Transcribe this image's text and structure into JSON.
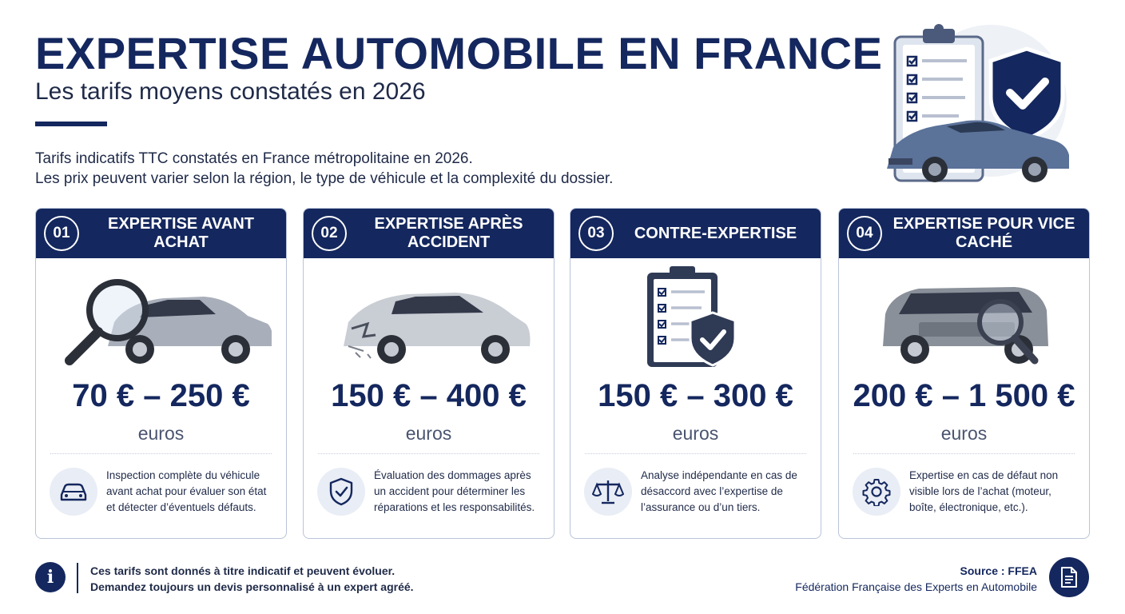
{
  "header": {
    "title": "EXPERTISE AUTOMOBILE EN FRANCE",
    "subtitle": "Les tarifs moyens constatés en 2026",
    "intro_line1": "Tarifs indicatifs TTC constatés en France métropolitaine en 2026.",
    "intro_line2": "Les prix peuvent varier selon la région, le type de véhicule et la complexité du dossier."
  },
  "colors": {
    "primary": "#14275e",
    "border": "#b9c3d9",
    "icon_bg": "#e9edf5"
  },
  "cards": [
    {
      "number": "01",
      "title": "EXPERTISE AVANT ACHAT",
      "illustration": "car-magnifier-illustration",
      "price": "70 € – 250 €",
      "unit": "euros",
      "icon": "car-icon",
      "description": "Inspection complète du véhicule avant achat pour évaluer son état et détecter d’éventuels défauts."
    },
    {
      "number": "02",
      "title": "EXPERTISE APRÈS ACCIDENT",
      "illustration": "damaged-car-illustration",
      "price": "150 € – 400 €",
      "unit": "euros",
      "icon": "shield-check-icon",
      "description": "Évaluation des dommages après un accident pour déterminer les réparations et les responsabilités."
    },
    {
      "number": "03",
      "title": "CONTRE-EXPERTISE",
      "illustration": "clipboard-shield-illustration",
      "price": "150 € – 300 €",
      "unit": "euros",
      "icon": "scales-icon",
      "description": "Analyse indépendante en cas de désaccord avec l’expertise de l’assurance ou d’un tiers."
    },
    {
      "number": "04",
      "title": "EXPERTISE POUR VICE CACHÉ",
      "illustration": "suv-magnifier-illustration",
      "price": "200 € – 1 500 €",
      "unit": "euros",
      "icon": "gear-icon",
      "description": "Expertise en cas de défaut non visible lors de l’achat (moteur, boîte, électronique, etc.)."
    }
  ],
  "footer": {
    "info_icon": "info-icon",
    "note_line1": "Ces tarifs sont donnés à titre indicatif et peuvent évoluer.",
    "note_line2": "Demandez toujours un devis personnalisé à un expert agréé.",
    "source_label": "Source : FFEA",
    "source_org": "Fédération Française des Experts en Automobile",
    "source_icon": "document-icon"
  }
}
